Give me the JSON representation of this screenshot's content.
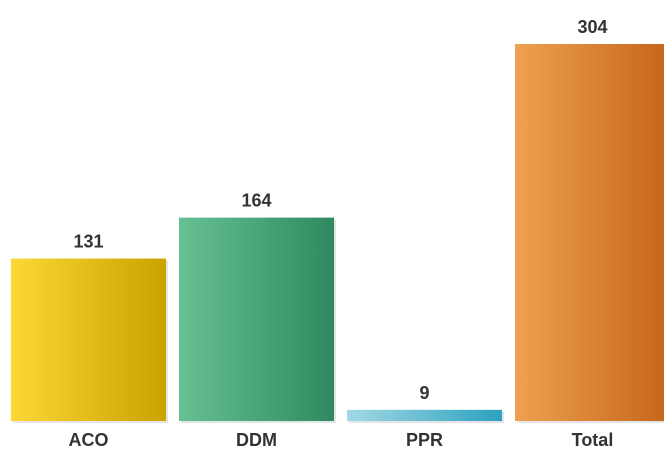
{
  "chart_data": {
    "type": "bar",
    "categories": [
      "ACO",
      "DDM",
      "PPR",
      "Total"
    ],
    "values": [
      131,
      164,
      9,
      304
    ],
    "data_labels": [
      "131",
      "164",
      "9",
      "304"
    ],
    "title": "",
    "xlabel": "",
    "ylabel": "",
    "ylim": [
      0,
      304
    ],
    "grid": false,
    "legend": "none",
    "colors": [
      {
        "light": "#fbd835",
        "dark": "#c9a300"
      },
      {
        "light": "#66c094",
        "dark": "#2f8a5f"
      },
      {
        "light": "#a3d8e5",
        "dark": "#2ba2bf"
      },
      {
        "light": "#eea150",
        "dark": "#c5651a"
      }
    ]
  }
}
